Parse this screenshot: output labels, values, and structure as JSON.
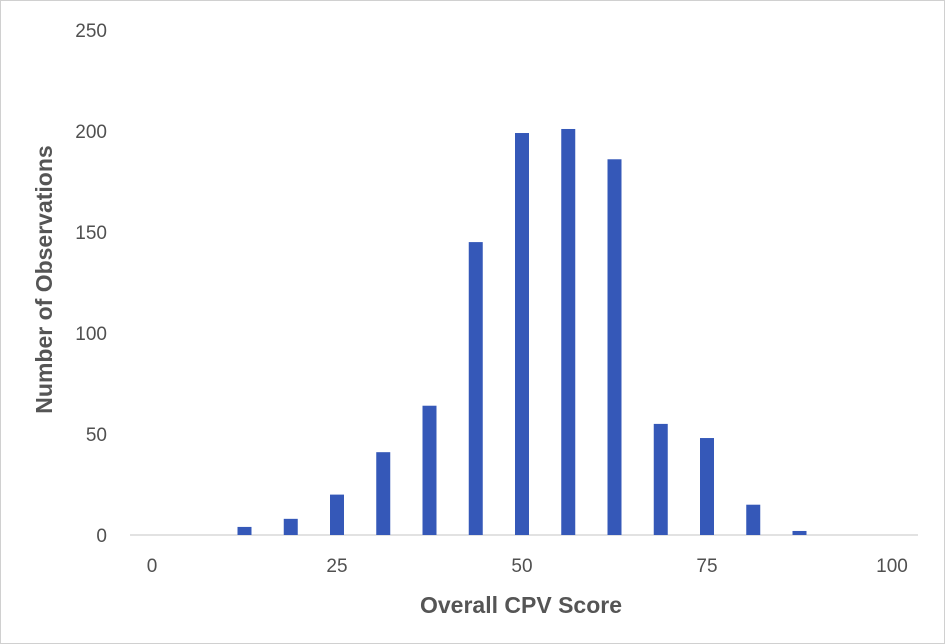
{
  "chart_data": {
    "type": "bar",
    "title": "",
    "xlabel": "Overall CPV Score",
    "ylabel": "Number of Observations",
    "xlim": [
      0,
      100
    ],
    "ylim": [
      0,
      250
    ],
    "x_ticks": [
      "0",
      "25",
      "50",
      "75",
      "100"
    ],
    "y_ticks": [
      "0",
      "50",
      "100",
      "150",
      "200",
      "250"
    ],
    "grid": false,
    "legend": "none",
    "bar_color": "#3558b8",
    "x": [
      12.5,
      18.75,
      25,
      31.25,
      37.5,
      43.75,
      50,
      56.25,
      62.5,
      68.75,
      75,
      81.25,
      87.5
    ],
    "values": [
      4,
      8,
      20,
      41,
      64,
      145,
      199,
      201,
      186,
      55,
      48,
      15,
      2
    ]
  }
}
